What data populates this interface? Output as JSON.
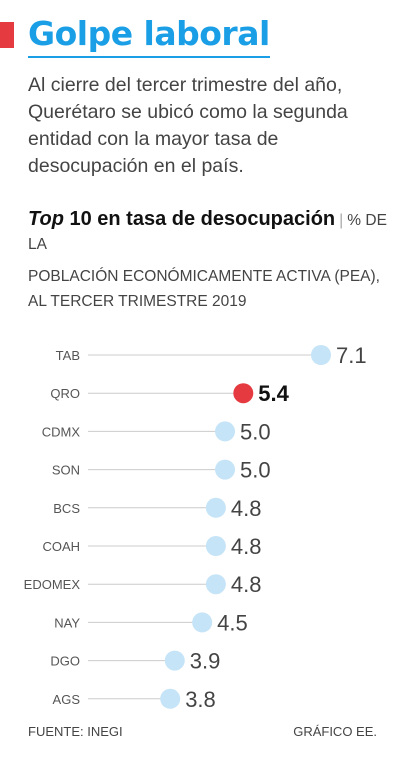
{
  "header": {
    "title": "Golpe laboral",
    "lead": "Al cierre del tercer trimestre del año, Querétaro se ubicó como la segunda entidad con la mayor tasa de desocupación en el país."
  },
  "subtitle": {
    "italic": "Top",
    "bold": " 10 en tasa de desocupación",
    "separator": "|",
    "unit_line1": "% DE LA",
    "unit_rest": "POBLACIÓN ECONÓMICAMENTE ACTIVA (PEA), AL TERCER TRIMESTRE 2019"
  },
  "chart_data": {
    "type": "scatter",
    "categories": [
      "TAB",
      "QRO",
      "CDMX",
      "SON",
      "BCS",
      "COAH",
      "EDOMEX",
      "NAY",
      "DGO",
      "AGS"
    ],
    "values": [
      7.1,
      5.4,
      5.0,
      5.0,
      4.8,
      4.8,
      4.8,
      4.5,
      3.9,
      3.8
    ],
    "value_labels": [
      "7.1",
      "5.4",
      "5.0",
      "5.0",
      "4.8",
      "4.8",
      "4.8",
      "4.5",
      "3.9",
      "3.8"
    ],
    "highlight": "QRO",
    "colors": {
      "point": "#c5e4f7",
      "highlight": "#e53a40",
      "line": "#cccccc"
    }
  },
  "footer": {
    "source": "FUENTE: INEGI",
    "credit": "GRÁFICO EE."
  }
}
